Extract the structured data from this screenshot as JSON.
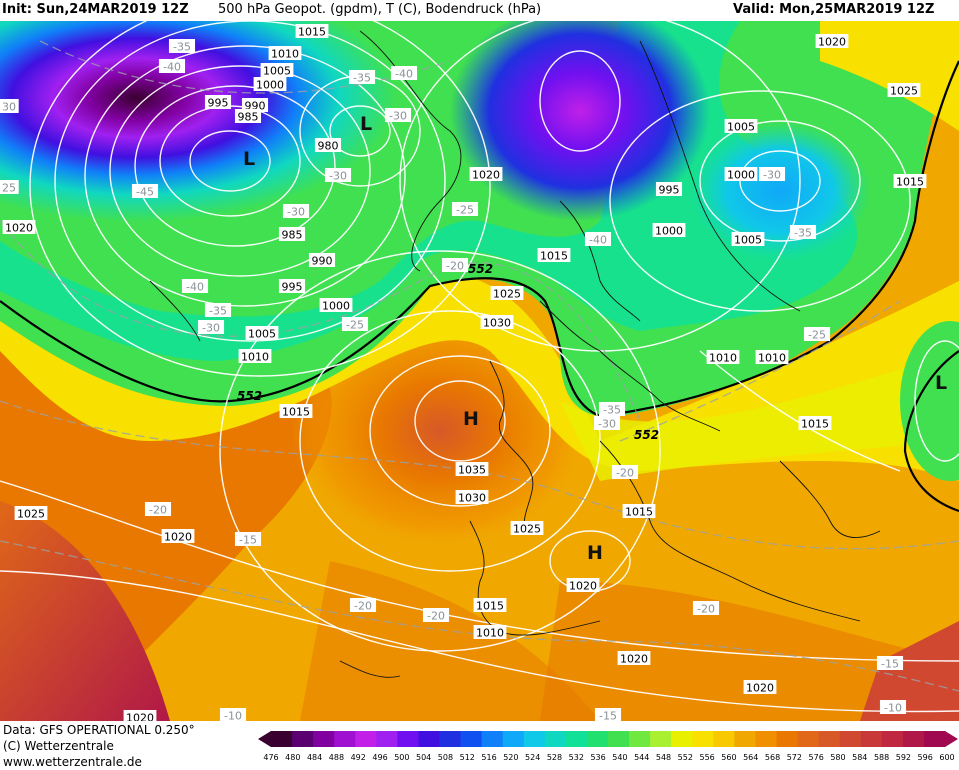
{
  "header": {
    "init": "Init: Sun,24MAR2019 12Z",
    "title": "500 hPa Geopot. (gpdm), T (C), Bodendruck (hPa)",
    "valid": "Valid: Mon,25MAR2019 12Z"
  },
  "footer": {
    "data_line": "Data: GFS OPERATIONAL 0.250°",
    "copyright": "(C) Wetterzentrale",
    "url": "www.wetterzentrale.de"
  },
  "legend": {
    "ticks": [
      "476",
      "480",
      "484",
      "488",
      "492",
      "496",
      "500",
      "504",
      "508",
      "512",
      "516",
      "520",
      "524",
      "528",
      "532",
      "536",
      "540",
      "544",
      "548",
      "552",
      "556",
      "560",
      "564",
      "568",
      "572",
      "576",
      "580",
      "584",
      "588",
      "592",
      "596",
      "600"
    ],
    "colors": [
      "#3a0030",
      "#5a0070",
      "#8000a0",
      "#a010d0",
      "#c020e8",
      "#a020f0",
      "#7010f0",
      "#4010e0",
      "#2030e0",
      "#1050f0",
      "#1080f8",
      "#10a8f8",
      "#10c8e8",
      "#10d8c0",
      "#10e098",
      "#20e070",
      "#40e050",
      "#70e840",
      "#a8f030",
      "#e8f000",
      "#f8e000",
      "#f8c800",
      "#f0a800",
      "#f09000",
      "#e87800",
      "#e06818",
      "#d85828",
      "#d04830",
      "#c83838",
      "#c02840",
      "#b01848",
      "#a00850"
    ]
  },
  "map": {
    "pressure_labels": [
      {
        "id": "p1015a",
        "text": "1015"
      },
      {
        "id": "p1010a",
        "text": "1010"
      },
      {
        "id": "p1005a",
        "text": "1005"
      },
      {
        "id": "p1000a",
        "text": "1000"
      },
      {
        "id": "p995a",
        "text": "995"
      },
      {
        "id": "p990a",
        "text": "990"
      },
      {
        "id": "p985a",
        "text": "985"
      },
      {
        "id": "p980",
        "text": "980"
      },
      {
        "id": "p985b",
        "text": "985"
      },
      {
        "id": "p990b",
        "text": "990"
      },
      {
        "id": "p995b",
        "text": "995"
      },
      {
        "id": "p1000b",
        "text": "1000"
      },
      {
        "id": "p1005b",
        "text": "1005"
      },
      {
        "id": "p1010b",
        "text": "1010"
      },
      {
        "id": "p1015b",
        "text": "1015"
      },
      {
        "id": "p1020a",
        "text": "1020"
      },
      {
        "id": "p1025a",
        "text": "1025"
      },
      {
        "id": "p1030a",
        "text": "1030"
      },
      {
        "id": "p1035",
        "text": "1035"
      },
      {
        "id": "p1030b",
        "text": "1030"
      },
      {
        "id": "p1025b",
        "text": "1025"
      },
      {
        "id": "p1020b",
        "text": "1020"
      },
      {
        "id": "p1015c",
        "text": "1015"
      },
      {
        "id": "p1010c",
        "text": "1010"
      },
      {
        "id": "p1020c",
        "text": "1020"
      },
      {
        "id": "p1015d",
        "text": "1015"
      },
      {
        "id": "p1020d",
        "text": "1020"
      },
      {
        "id": "p1020e",
        "text": "1020"
      },
      {
        "id": "p1020f",
        "text": "1020"
      },
      {
        "id": "p1015e",
        "text": "1015"
      },
      {
        "id": "p1010d",
        "text": "1010"
      },
      {
        "id": "p1010e",
        "text": "1010"
      },
      {
        "id": "p1000c",
        "text": "1000"
      },
      {
        "id": "p1005c",
        "text": "1005"
      },
      {
        "id": "p1005d",
        "text": "1005"
      },
      {
        "id": "p995c",
        "text": "995"
      },
      {
        "id": "p1000d",
        "text": "1000"
      },
      {
        "id": "p1025c",
        "text": "1025"
      },
      {
        "id": "p1015f",
        "text": "1015"
      },
      {
        "id": "p1020g",
        "text": "1020"
      },
      {
        "id": "p1025d",
        "text": "1025"
      },
      {
        "id": "p1015g",
        "text": "1015"
      },
      {
        "id": "p1020h",
        "text": "1020"
      }
    ],
    "temperature_labels": [
      {
        "id": "t1",
        "text": "-35"
      },
      {
        "id": "t2",
        "text": "-40"
      },
      {
        "id": "t3",
        "text": "-35"
      },
      {
        "id": "t4",
        "text": "-40"
      },
      {
        "id": "t5",
        "text": "-30"
      },
      {
        "id": "t6",
        "text": "-45"
      },
      {
        "id": "t7",
        "text": "-30"
      },
      {
        "id": "t8",
        "text": "-30"
      },
      {
        "id": "t9",
        "text": "-25"
      },
      {
        "id": "t10",
        "text": "-20"
      },
      {
        "id": "t11",
        "text": "-40"
      },
      {
        "id": "t12",
        "text": "-35"
      },
      {
        "id": "t13",
        "text": "-30"
      },
      {
        "id": "t14",
        "text": "-25"
      },
      {
        "id": "t15",
        "text": "-40"
      },
      {
        "id": "t16",
        "text": "-30"
      },
      {
        "id": "t17",
        "text": "-35"
      },
      {
        "id": "t18",
        "text": "-25"
      },
      {
        "id": "t19",
        "text": "-35"
      },
      {
        "id": "t20",
        "text": "-30"
      },
      {
        "id": "t21",
        "text": "-20"
      },
      {
        "id": "t22",
        "text": "-20"
      },
      {
        "id": "t23",
        "text": "-15"
      },
      {
        "id": "t24",
        "text": "-20"
      },
      {
        "id": "t25",
        "text": "-20"
      },
      {
        "id": "t26",
        "text": "-20"
      },
      {
        "id": "t27",
        "text": "-15"
      },
      {
        "id": "t28",
        "text": "-10"
      },
      {
        "id": "t29",
        "text": "-15"
      },
      {
        "id": "t30",
        "text": "-10"
      },
      {
        "id": "t31",
        "text": "30"
      },
      {
        "id": "t32",
        "text": "25"
      }
    ],
    "geopotential_labels": [
      {
        "id": "g1",
        "text": "552"
      },
      {
        "id": "g2",
        "text": "552"
      },
      {
        "id": "g3",
        "text": "552"
      }
    ],
    "pressure_centers": [
      {
        "id": "L1",
        "text": "L"
      },
      {
        "id": "L2",
        "text": "L"
      },
      {
        "id": "H1",
        "text": "H"
      },
      {
        "id": "H2",
        "text": "H"
      },
      {
        "id": "L3",
        "text": "L"
      }
    ]
  }
}
